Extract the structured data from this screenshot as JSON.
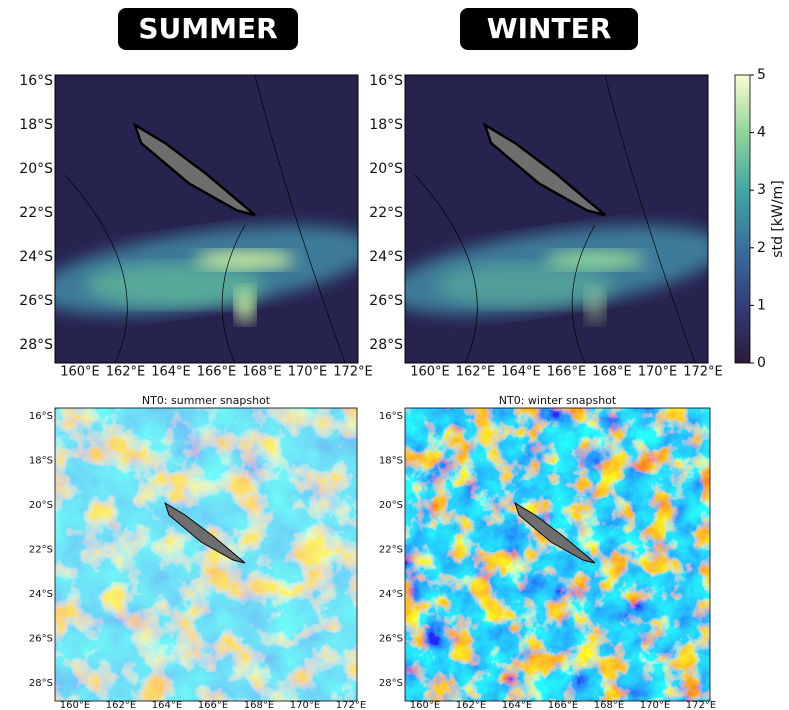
{
  "headers": [
    "SUMMER",
    "WINTER"
  ],
  "top_maps": {
    "lat_labels": [
      "16°S",
      "18°S",
      "20°S",
      "22°S",
      "24°S",
      "26°S",
      "28°S"
    ],
    "lon_labels": [
      "160°E",
      "162°E",
      "164°E",
      "166°E",
      "168°E",
      "170°E",
      "172°E"
    ]
  },
  "colorbar": {
    "label": "std [kW/m]",
    "lim": [
      0,
      5
    ],
    "ticks": [
      0,
      1,
      2,
      3,
      4,
      5
    ]
  },
  "bottom_maps": {
    "titles": [
      "NT0: summer snapshot",
      "NT0: winter snapshot"
    ],
    "lat_labels": [
      "16°S",
      "18°S",
      "20°S",
      "22°S",
      "24°S",
      "26°S",
      "28°S"
    ],
    "lon_labels": [
      "160°E",
      "162°E",
      "164°E",
      "166°E",
      "168°E",
      "170°E",
      "172°E"
    ]
  }
}
